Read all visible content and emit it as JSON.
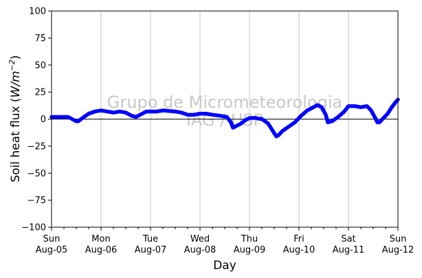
{
  "chart_data": {
    "type": "line",
    "xlabel": "Day",
    "ylabel_prefix": "Soil heat flux (",
    "ylabel_unit_base": "W/m",
    "ylabel_unit_exp": "−2",
    "ylabel_suffix": ")",
    "ylim": [
      -100,
      100
    ],
    "y_ticks": [
      100,
      75,
      50,
      25,
      0,
      -25,
      -50,
      -75,
      -100
    ],
    "xlim": [
      "2018-08-05 00:00",
      "2018-08-12 00:00"
    ],
    "x_ticks": [
      {
        "day": "Sun",
        "date": "Aug-05"
      },
      {
        "day": "Mon",
        "date": "Aug-06"
      },
      {
        "day": "Tue",
        "date": "Aug-07"
      },
      {
        "day": "Wed",
        "date": "Aug-08"
      },
      {
        "day": "Thu",
        "date": "Aug-09"
      },
      {
        "day": "Fri",
        "date": "Aug-10"
      },
      {
        "day": "Sat",
        "date": "Aug-11"
      },
      {
        "day": "Sun",
        "date": "Aug-12"
      }
    ],
    "grid": "vertical",
    "zero_line": true,
    "watermark": [
      "Grupo de Micrometeorologia",
      "IAG / USP"
    ],
    "series": [
      {
        "color": "#0000ff",
        "points": [
          [
            "2018-08-05 00:00",
            2
          ],
          [
            "2018-08-05 03:00",
            2
          ],
          [
            "2018-08-05 06:00",
            2
          ],
          [
            "2018-08-05 08:00",
            2
          ],
          [
            "2018-08-05 10:00",
            0
          ],
          [
            "2018-08-05 12:00",
            -2
          ],
          [
            "2018-08-05 13:00",
            -2
          ],
          [
            "2018-08-05 15:00",
            1
          ],
          [
            "2018-08-05 18:00",
            5
          ],
          [
            "2018-08-05 21:00",
            7
          ],
          [
            "2018-08-06 00:00",
            8
          ],
          [
            "2018-08-06 03:00",
            7
          ],
          [
            "2018-08-06 06:00",
            6
          ],
          [
            "2018-08-06 09:00",
            7
          ],
          [
            "2018-08-06 12:00",
            6
          ],
          [
            "2018-08-06 15:00",
            3
          ],
          [
            "2018-08-06 17:00",
            2
          ],
          [
            "2018-08-06 19:00",
            4
          ],
          [
            "2018-08-06 22:00",
            7
          ],
          [
            "2018-08-07 03:00",
            7
          ],
          [
            "2018-08-07 06:00",
            8
          ],
          [
            "2018-08-07 12:00",
            7
          ],
          [
            "2018-08-07 15:00",
            6
          ],
          [
            "2018-08-07 18:00",
            4
          ],
          [
            "2018-08-07 21:00",
            4
          ],
          [
            "2018-08-08 00:00",
            5
          ],
          [
            "2018-08-08 03:00",
            5
          ],
          [
            "2018-08-08 06:00",
            4
          ],
          [
            "2018-08-08 10:00",
            3
          ],
          [
            "2018-08-08 13:00",
            2
          ],
          [
            "2018-08-08 15:00",
            -3
          ],
          [
            "2018-08-08 16:00",
            -8
          ],
          [
            "2018-08-08 18:00",
            -6
          ],
          [
            "2018-08-08 20:00",
            -4
          ],
          [
            "2018-08-08 22:00",
            -1
          ],
          [
            "2018-08-09 00:00",
            1
          ],
          [
            "2018-08-09 03:00",
            1
          ],
          [
            "2018-08-09 06:00",
            0
          ],
          [
            "2018-08-09 09:00",
            -4
          ],
          [
            "2018-08-09 11:00",
            -10
          ],
          [
            "2018-08-09 13:00",
            -16
          ],
          [
            "2018-08-09 14:00",
            -15
          ],
          [
            "2018-08-09 16:00",
            -11
          ],
          [
            "2018-08-09 19:00",
            -7
          ],
          [
            "2018-08-09 22:00",
            -3
          ],
          [
            "2018-08-10 01:00",
            3
          ],
          [
            "2018-08-10 04:00",
            8
          ],
          [
            "2018-08-10 07:00",
            11
          ],
          [
            "2018-08-10 09:00",
            13
          ],
          [
            "2018-08-10 11:00",
            11
          ],
          [
            "2018-08-10 13:00",
            4
          ],
          [
            "2018-08-10 14:00",
            -3
          ],
          [
            "2018-08-10 16:00",
            -2
          ],
          [
            "2018-08-10 19:00",
            2
          ],
          [
            "2018-08-10 22:00",
            7
          ],
          [
            "2018-08-11 00:00",
            12
          ],
          [
            "2018-08-11 03:00",
            12
          ],
          [
            "2018-08-11 06:00",
            11
          ],
          [
            "2018-08-11 09:00",
            12
          ],
          [
            "2018-08-11 11:00",
            8
          ],
          [
            "2018-08-11 13:00",
            1
          ],
          [
            "2018-08-11 14:00",
            -3
          ],
          [
            "2018-08-11 15:00",
            -3
          ],
          [
            "2018-08-11 17:00",
            1
          ],
          [
            "2018-08-11 19:00",
            5
          ],
          [
            "2018-08-11 21:00",
            11
          ],
          [
            "2018-08-11 23:00",
            16
          ],
          [
            "2018-08-12 00:00",
            18
          ]
        ]
      }
    ]
  }
}
